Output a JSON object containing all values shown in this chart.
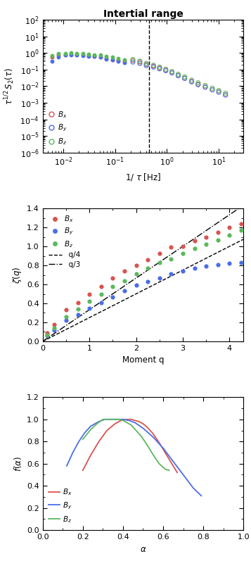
{
  "title": "Intertial range",
  "panel1": {
    "xlabel": "1/ $\\tau$ [Hz]",
    "ylabel": "$\\tau^{1/2}\\, S_2(\\tau)$",
    "xlim_low": 0.004,
    "xlim_high": 30,
    "ylim_low": 1e-06,
    "ylim_high": 100.0,
    "dashed_x": 0.45,
    "Bx_filled_x": [
      0.006,
      0.008,
      0.011,
      0.014,
      0.018,
      0.024,
      0.031,
      0.04,
      0.052,
      0.068,
      0.088,
      0.115,
      0.15
    ],
    "Bx_filled_y": [
      0.58,
      0.72,
      0.78,
      0.82,
      0.78,
      0.72,
      0.67,
      0.62,
      0.56,
      0.46,
      0.4,
      0.36,
      0.3
    ],
    "By_filled_x": [
      0.006,
      0.008,
      0.011,
      0.014,
      0.018,
      0.024,
      0.031,
      0.04,
      0.052,
      0.068,
      0.088,
      0.115,
      0.15
    ],
    "By_filled_y": [
      0.32,
      0.58,
      0.72,
      0.78,
      0.74,
      0.7,
      0.64,
      0.6,
      0.54,
      0.44,
      0.37,
      0.32,
      0.27
    ],
    "Bz_filled_x": [
      0.006,
      0.008,
      0.011,
      0.014,
      0.018,
      0.024,
      0.031,
      0.04,
      0.052,
      0.068,
      0.088,
      0.115,
      0.15
    ],
    "Bz_filled_y": [
      0.68,
      0.88,
      0.95,
      1.05,
      0.95,
      0.88,
      0.83,
      0.78,
      0.72,
      0.62,
      0.54,
      0.47,
      0.4
    ],
    "Bx_open_x": [
      0.22,
      0.3,
      0.4,
      0.55,
      0.72,
      0.95,
      1.25,
      1.65,
      2.2,
      3.0,
      4.0,
      5.5,
      7.5,
      10.0,
      13.5
    ],
    "Bx_open_y": [
      0.35,
      0.28,
      0.2,
      0.16,
      0.12,
      0.09,
      0.065,
      0.044,
      0.03,
      0.019,
      0.013,
      0.009,
      0.006,
      0.0045,
      0.003
    ],
    "By_open_x": [
      0.22,
      0.3,
      0.4,
      0.55,
      0.72,
      0.95,
      1.25,
      1.65,
      2.2,
      3.0,
      4.0,
      5.5,
      7.5,
      10.0,
      13.5
    ],
    "By_open_y": [
      0.28,
      0.23,
      0.17,
      0.14,
      0.11,
      0.085,
      0.062,
      0.042,
      0.029,
      0.018,
      0.012,
      0.0085,
      0.006,
      0.0043,
      0.0029
    ],
    "Bz_open_x": [
      0.22,
      0.3,
      0.4,
      0.55,
      0.72,
      0.95,
      1.25,
      1.65,
      2.2,
      3.0,
      4.0,
      5.5,
      7.5,
      10.0,
      13.5
    ],
    "Bz_open_y": [
      0.4,
      0.32,
      0.23,
      0.18,
      0.14,
      0.105,
      0.076,
      0.052,
      0.036,
      0.023,
      0.016,
      0.011,
      0.0075,
      0.0055,
      0.0038
    ]
  },
  "panel2": {
    "xlabel": "Moment q",
    "ylabel": "$\\zeta(q)$",
    "xlim_low": 0,
    "xlim_high": 4.3,
    "ylim_low": 0,
    "ylim_high": 1.4,
    "q_vals": [
      0.1,
      0.25,
      0.5,
      0.75,
      1.0,
      1.25,
      1.5,
      1.75,
      2.0,
      2.25,
      2.5,
      2.75,
      3.0,
      3.25,
      3.5,
      3.75,
      4.0,
      4.25
    ],
    "Bx_zeta": [
      0.09,
      0.18,
      0.33,
      0.41,
      0.5,
      0.58,
      0.67,
      0.74,
      0.8,
      0.86,
      0.93,
      0.99,
      1.0,
      1.06,
      1.1,
      1.15,
      1.2,
      1.24
    ],
    "By_zeta": [
      0.06,
      0.12,
      0.22,
      0.28,
      0.35,
      0.41,
      0.47,
      0.53,
      0.59,
      0.63,
      0.67,
      0.71,
      0.74,
      0.77,
      0.79,
      0.81,
      0.82,
      0.83
    ],
    "Bz_zeta": [
      0.07,
      0.14,
      0.26,
      0.34,
      0.42,
      0.5,
      0.58,
      0.64,
      0.71,
      0.77,
      0.83,
      0.87,
      0.93,
      0.98,
      1.02,
      1.07,
      1.12,
      1.17
    ]
  },
  "panel3": {
    "xlabel": "$\\alpha$",
    "ylabel": "$f(\\alpha)$",
    "xlim_low": 0,
    "xlim_high": 1.0,
    "ylim_low": 0,
    "ylim_high": 1.2,
    "Bx_alpha": [
      0.2,
      0.24,
      0.28,
      0.32,
      0.36,
      0.39,
      0.42,
      0.44,
      0.46,
      0.48,
      0.5,
      0.52,
      0.55,
      0.58,
      0.61,
      0.64,
      0.67
    ],
    "Bx_falpha": [
      0.54,
      0.68,
      0.8,
      0.9,
      0.96,
      0.99,
      1.0,
      1.0,
      0.99,
      0.98,
      0.96,
      0.93,
      0.87,
      0.79,
      0.7,
      0.61,
      0.52
    ],
    "By_alpha": [
      0.12,
      0.15,
      0.18,
      0.21,
      0.24,
      0.28,
      0.31,
      0.34,
      0.37,
      0.4,
      0.43,
      0.46,
      0.5,
      0.55,
      0.6,
      0.65,
      0.7,
      0.75,
      0.79
    ],
    "By_falpha": [
      0.58,
      0.7,
      0.8,
      0.88,
      0.94,
      0.98,
      1.0,
      1.0,
      1.0,
      1.0,
      0.99,
      0.97,
      0.92,
      0.84,
      0.74,
      0.62,
      0.5,
      0.38,
      0.31
    ],
    "Bz_alpha": [
      0.2,
      0.24,
      0.27,
      0.3,
      0.33,
      0.36,
      0.38,
      0.4,
      0.42,
      0.44,
      0.46,
      0.49,
      0.52,
      0.55,
      0.58,
      0.61,
      0.63
    ],
    "Bz_falpha": [
      0.82,
      0.91,
      0.96,
      1.0,
      1.0,
      1.0,
      1.0,
      0.99,
      0.97,
      0.95,
      0.91,
      0.85,
      0.77,
      0.68,
      0.6,
      0.55,
      0.54
    ]
  },
  "colors": {
    "Bx": "#d9534f",
    "By": "#4a6ee8",
    "Bz": "#5cb85c"
  }
}
